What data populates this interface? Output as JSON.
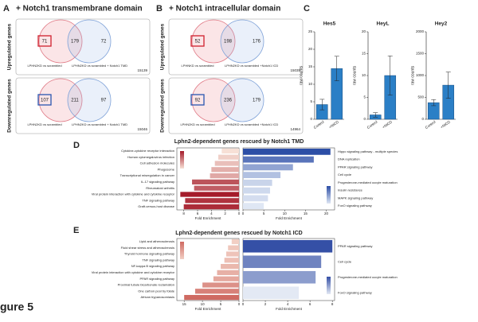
{
  "figure_label": "gure 5",
  "venn_panels": [
    {
      "letter": "A",
      "title": "+ Notch1 transmembrane domain",
      "rows": [
        {
          "row_label": "Upregulated genes",
          "left_only": 71,
          "both": 179,
          "right_only": 72,
          "left_label": "LPHN2KD vs scrambled",
          "right_label": "LPHN2KD vs scrambled + Notch1 TMD",
          "total": 15139,
          "highlight_color": "#d0202e"
        },
        {
          "row_label": "Downregulated genes",
          "left_only": 107,
          "both": 211,
          "right_only": 97,
          "left_label": "LPHN2KD vs scrambled",
          "right_label": "LPHN2KD vs scrambled + Notch1 TMD",
          "total": 15046,
          "highlight_color": "#2a55b0"
        }
      ]
    },
    {
      "letter": "B",
      "title": "+ Notch1 intracellular domain",
      "rows": [
        {
          "row_label": "Upregulated genes",
          "left_only": 52,
          "both": 198,
          "right_only": 176,
          "left_label": "LPHNKD vs scrambled",
          "right_label": "LPHN2KD vs scrambled +Notch1 ICD",
          "total": 15035,
          "highlight_color": "#d0202e"
        },
        {
          "row_label": "Downregulated genes",
          "left_only": 92,
          "both": 236,
          "right_only": 179,
          "left_label": "LPHN2KD vs scrambled",
          "right_label": "LPHN2KD vs scrambled +Notch1 ICD",
          "total": 14964,
          "highlight_color": "#2a55b0"
        }
      ]
    }
  ],
  "panel_letters": [
    "C",
    "D",
    "E"
  ],
  "section_titles": [
    "Lphn2-dependent genes rescued by Notch1 TMD",
    "Lphn2-dependent genes rescued by Notch1 ICD"
  ],
  "chart_data": [
    {
      "type": "bar",
      "title": "Hes5",
      "ylabel": "raw counts",
      "categories": [
        "Control",
        "+NICD"
      ],
      "values": [
        4.2,
        14.5
      ],
      "errors": [
        1.5,
        3.5
      ],
      "color": "#2b7fc6",
      "ylim": [
        0,
        25
      ],
      "yticks": [
        0,
        5,
        10,
        15,
        20,
        25
      ]
    },
    {
      "type": "bar",
      "title": "HeyL",
      "ylabel": "raw counts",
      "categories": [
        "Control",
        "+NICD"
      ],
      "values": [
        1,
        10
      ],
      "errors": [
        0.5,
        4.5
      ],
      "color": "#2b7fc6",
      "ylim": [
        0,
        20
      ],
      "yticks": [
        0,
        5,
        10,
        15,
        20
      ]
    },
    {
      "type": "bar",
      "title": "Hey2",
      "ylabel": "raw counts",
      "categories": [
        "Control",
        "+NICD"
      ],
      "values": [
        380,
        780
      ],
      "errors": [
        70,
        300
      ],
      "color": "#2b7fc6",
      "ylim": [
        0,
        2000
      ],
      "yticks": [
        0,
        500,
        1000,
        1500,
        2000
      ]
    },
    {
      "type": "barh",
      "xlabel": "Fold Enrichment",
      "label_side": "left",
      "categories": [
        "Cytokine-cytokine receptor interaction",
        "Human cytomegalovirus infection",
        "Cell adhesion molecules",
        "Phagosome",
        "Transcriptional misregulation in cancer",
        "IL-17 signaling pathway",
        "Rheumatoid arthritis",
        "Viral protein interaction with cytokine and cytokine receptor",
        "TNF signaling pathway",
        "Graft-versus-host disease"
      ],
      "values": [
        2.5,
        3,
        3.5,
        4,
        4.2,
        6.8,
        6.5,
        8.5,
        7.8,
        8
      ],
      "xlim": [
        9,
        0
      ],
      "xticks": [
        8,
        6,
        4,
        2,
        0
      ],
      "color_scale": [
        "#f7e0d6",
        "#a51c2b"
      ]
    },
    {
      "type": "barh",
      "xlabel": "Fold Enrichment",
      "label_side": "right",
      "categories": [
        "Hippo signaling pathway - multiple species",
        "DNA replication",
        "PPAR signaling pathway",
        "Cell cycle",
        "Progesterone-mediated oocyte maturation",
        "Insulin resistance",
        "MAPK signaling pathway",
        "FoxO signaling pathway"
      ],
      "values": [
        21,
        17,
        12,
        9,
        7,
        6.5,
        6,
        5
      ],
      "xlim": [
        0,
        22
      ],
      "xticks": [
        0,
        5,
        10,
        15,
        20
      ],
      "color_scale": [
        "#dfe7f4",
        "#2c4ea6"
      ]
    },
    {
      "type": "barh",
      "xlabel": "Fold Enrichment",
      "label_side": "left",
      "categories": [
        "Lipid and atherosclerosis",
        "Fluid shear stress and atherosclerosis",
        "Thyroid hormone signaling pathway",
        "TNF signaling pathway",
        "NF-kappa B signaling pathway",
        "Viral protein interaction with cytokine and cytokine receptor",
        "PPAR signaling pathway",
        "Proximal tubule bicarbonate reclamation",
        "One carbon pool by folate",
        "African trypanosomiasis"
      ],
      "values": [
        2,
        3,
        3.5,
        4,
        5,
        6,
        7,
        10,
        12,
        15
      ],
      "xlim": [
        17,
        0
      ],
      "xticks": [
        15,
        10,
        5,
        0
      ],
      "color_scale": [
        "#f2cfc4",
        "#cf6a62"
      ]
    },
    {
      "type": "barh",
      "xlabel": "Fold Enrichment",
      "label_side": "right",
      "categories": [
        "PPAR signaling pathway",
        "Cell cycle",
        "Progesterone-mediated oocyte maturation",
        "FoxO signaling pathway"
      ],
      "values": [
        8,
        7,
        6.5,
        5
      ],
      "xlim": [
        0,
        8.2
      ],
      "xticks": [
        0,
        2,
        4,
        6,
        8
      ],
      "color_scale": [
        "#e3e9f4",
        "#3550a6"
      ]
    }
  ]
}
